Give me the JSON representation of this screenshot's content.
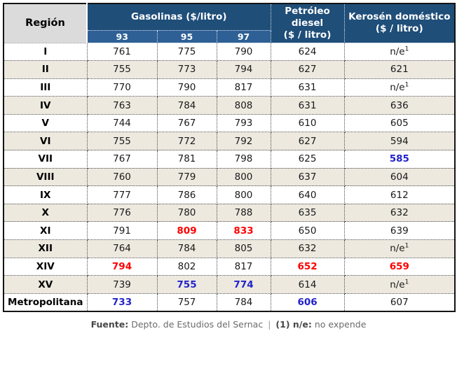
{
  "colors": {
    "header-bg": "#1F4E79",
    "subheader-bg": "#2E6096",
    "region-header-bg": "#DBDBDB",
    "row-alt-bg": "#EDE9DF",
    "highlight-red": "#FF0000",
    "highlight-blue": "#2222CC"
  },
  "table": {
    "header": {
      "region": "Región",
      "gasolinas": "Gasolinas ($/litro)",
      "octanes": [
        "93",
        "95",
        "97"
      ],
      "diesel_title": "Petróleo diesel",
      "diesel_unit": "($ / litro)",
      "kerosene_title": "Kerosén doméstico",
      "kerosene_unit": "($ / litro)"
    },
    "rows": [
      {
        "region": "I",
        "cells": [
          {
            "v": "761"
          },
          {
            "v": "775"
          },
          {
            "v": "790"
          },
          {
            "v": "624"
          },
          {
            "v": "n/e",
            "sup": "1"
          }
        ]
      },
      {
        "region": "II",
        "cells": [
          {
            "v": "755"
          },
          {
            "v": "773"
          },
          {
            "v": "794"
          },
          {
            "v": "627"
          },
          {
            "v": "621"
          }
        ]
      },
      {
        "region": "III",
        "cells": [
          {
            "v": "770"
          },
          {
            "v": "790"
          },
          {
            "v": "817"
          },
          {
            "v": "631"
          },
          {
            "v": "n/e",
            "sup": "1"
          }
        ]
      },
      {
        "region": "IV",
        "cells": [
          {
            "v": "763"
          },
          {
            "v": "784"
          },
          {
            "v": "808"
          },
          {
            "v": "631"
          },
          {
            "v": "636"
          }
        ]
      },
      {
        "region": "V",
        "cells": [
          {
            "v": "744"
          },
          {
            "v": "767"
          },
          {
            "v": "793"
          },
          {
            "v": "610"
          },
          {
            "v": "605"
          }
        ]
      },
      {
        "region": "VI",
        "cells": [
          {
            "v": "755"
          },
          {
            "v": "772"
          },
          {
            "v": "792"
          },
          {
            "v": "627"
          },
          {
            "v": "594"
          }
        ]
      },
      {
        "region": "VII",
        "cells": [
          {
            "v": "767"
          },
          {
            "v": "781"
          },
          {
            "v": "798"
          },
          {
            "v": "625"
          },
          {
            "v": "585",
            "hl": "blue"
          }
        ]
      },
      {
        "region": "VIII",
        "cells": [
          {
            "v": "760"
          },
          {
            "v": "779"
          },
          {
            "v": "800"
          },
          {
            "v": "637"
          },
          {
            "v": "604"
          }
        ]
      },
      {
        "region": "IX",
        "cells": [
          {
            "v": "777"
          },
          {
            "v": "786"
          },
          {
            "v": "800"
          },
          {
            "v": "640"
          },
          {
            "v": "612"
          }
        ]
      },
      {
        "region": "X",
        "cells": [
          {
            "v": "776"
          },
          {
            "v": "780"
          },
          {
            "v": "788"
          },
          {
            "v": "635"
          },
          {
            "v": "632"
          }
        ]
      },
      {
        "region": "XI",
        "cells": [
          {
            "v": "791"
          },
          {
            "v": "809",
            "hl": "red"
          },
          {
            "v": "833",
            "hl": "red"
          },
          {
            "v": "650"
          },
          {
            "v": "639"
          }
        ]
      },
      {
        "region": "XII",
        "cells": [
          {
            "v": "764"
          },
          {
            "v": "784"
          },
          {
            "v": "805"
          },
          {
            "v": "632"
          },
          {
            "v": "n/e",
            "sup": "1"
          }
        ]
      },
      {
        "region": "XIV",
        "cells": [
          {
            "v": "794",
            "hl": "red"
          },
          {
            "v": "802"
          },
          {
            "v": "817"
          },
          {
            "v": "652",
            "hl": "red"
          },
          {
            "v": "659",
            "hl": "red"
          }
        ]
      },
      {
        "region": "XV",
        "cells": [
          {
            "v": "739"
          },
          {
            "v": "755",
            "hl": "blue"
          },
          {
            "v": "774",
            "hl": "blue"
          },
          {
            "v": "614"
          },
          {
            "v": "n/e",
            "sup": "1"
          }
        ]
      },
      {
        "region": "Metropolitana",
        "cells": [
          {
            "v": "733",
            "hl": "blue"
          },
          {
            "v": "757"
          },
          {
            "v": "784"
          },
          {
            "v": "606",
            "hl": "blue"
          },
          {
            "v": "607"
          }
        ]
      }
    ]
  },
  "footer": {
    "fuente_label": "Fuente:",
    "source": "Depto. de Estudios del Sernac",
    "separator": "|",
    "note_label": "(1) n/e:",
    "note": "no expende"
  },
  "chart_data": {
    "type": "table",
    "title": "Precios de combustibles por región",
    "columns": [
      "Región",
      "Gasolina 93 ($/litro)",
      "Gasolina 95 ($/litro)",
      "Gasolina 97 ($/litro)",
      "Petróleo diesel ($/litro)",
      "Kerosén doméstico ($/litro)"
    ],
    "rows": [
      [
        "I",
        761,
        775,
        790,
        624,
        "n/e"
      ],
      [
        "II",
        755,
        773,
        794,
        627,
        621
      ],
      [
        "III",
        770,
        790,
        817,
        631,
        "n/e"
      ],
      [
        "IV",
        763,
        784,
        808,
        631,
        636
      ],
      [
        "V",
        744,
        767,
        793,
        610,
        605
      ],
      [
        "VI",
        755,
        772,
        792,
        627,
        594
      ],
      [
        "VII",
        767,
        781,
        798,
        625,
        585
      ],
      [
        "VIII",
        760,
        779,
        800,
        637,
        604
      ],
      [
        "IX",
        777,
        786,
        800,
        640,
        612
      ],
      [
        "X",
        776,
        780,
        788,
        635,
        632
      ],
      [
        "XI",
        791,
        809,
        833,
        650,
        639
      ],
      [
        "XII",
        764,
        784,
        805,
        632,
        "n/e"
      ],
      [
        "XIV",
        794,
        802,
        817,
        652,
        659
      ],
      [
        "XV",
        739,
        755,
        774,
        614,
        "n/e"
      ],
      [
        "Metropolitana",
        733,
        757,
        784,
        606,
        607
      ]
    ],
    "highlights": {
      "red_max": [
        [
          "XI",
          "95"
        ],
        [
          "XI",
          "97"
        ],
        [
          "XIV",
          "93"
        ],
        [
          "XIV",
          "diesel"
        ],
        [
          "XIV",
          "kerosene"
        ]
      ],
      "blue_min": [
        [
          "VII",
          "kerosene"
        ],
        [
          "XV",
          "95"
        ],
        [
          "XV",
          "97"
        ],
        [
          "Metropolitana",
          "93"
        ],
        [
          "Metropolitana",
          "diesel"
        ]
      ]
    },
    "notes": "(1) n/e: no expende. Fuente: Depto. de Estudios del Sernac"
  }
}
